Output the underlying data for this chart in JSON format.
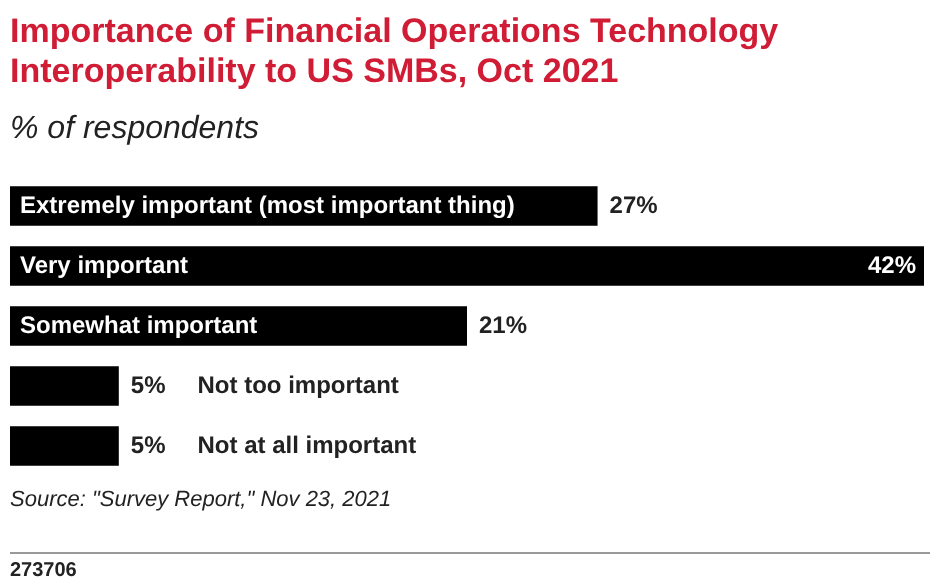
{
  "chart_data": {
    "type": "bar",
    "orientation": "horizontal",
    "title": "Importance of Financial Operations Technology Interoperability to US SMBs, Oct 2021",
    "subtitle": "% of respondents",
    "categories": [
      "Extremely important (most important thing)",
      "Very important",
      "Somewhat important",
      "Not too important",
      "Not at all important"
    ],
    "values": [
      27,
      42,
      21,
      5,
      5
    ],
    "value_labels": [
      "27%",
      "42%",
      "21%",
      "5%",
      "5%"
    ],
    "color": "#000000",
    "annotations": [
      "Source: \"Survey Report,\" Nov 23, 2021",
      "273706"
    ]
  }
}
